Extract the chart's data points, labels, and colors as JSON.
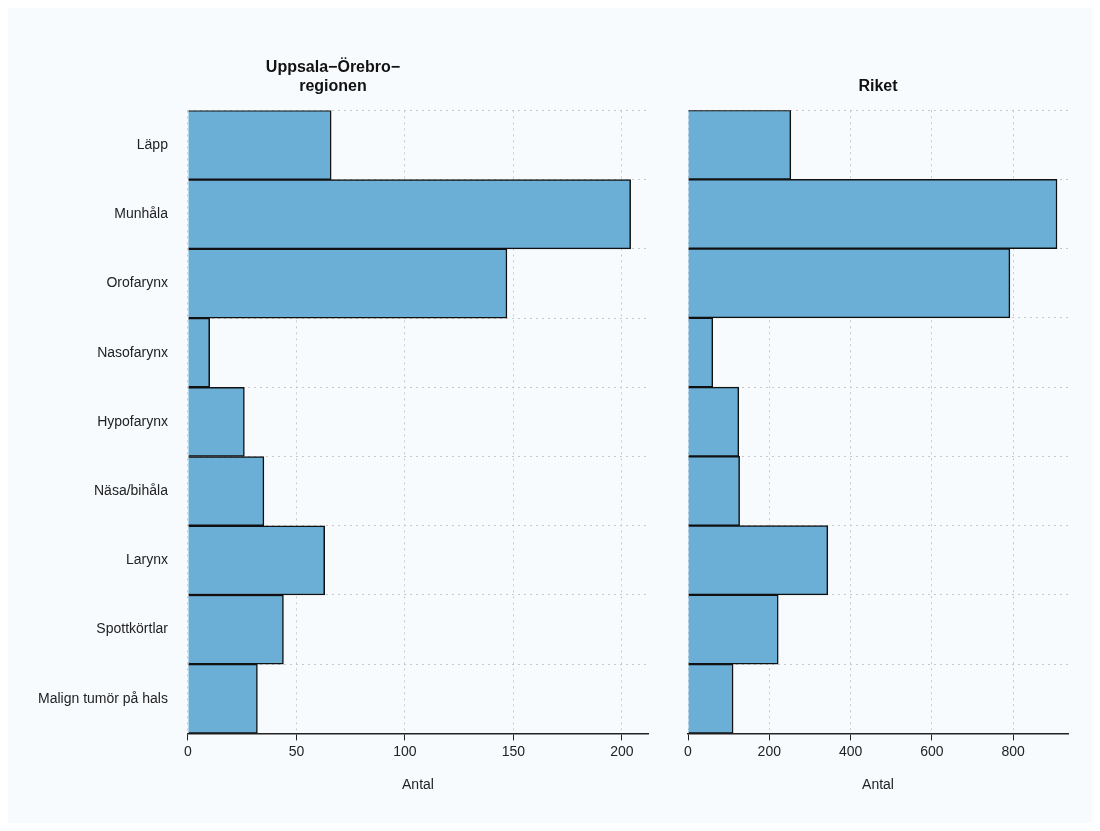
{
  "chart_data": [
    {
      "type": "bar",
      "orientation": "horizontal",
      "title": "Uppsala−Örebro−regionen",
      "xlabel": "Antal",
      "categories": [
        "Läpp",
        "Munhåla",
        "Orofarynx",
        "Nasofarynx",
        "Hypofarynx",
        "Näsa/bihåla",
        "Larynx",
        "Spottkörtlar",
        "Malign tumör på hals"
      ],
      "values": [
        66,
        204,
        147,
        10,
        26,
        35,
        63,
        44,
        32
      ],
      "color": "#6baed6",
      "xlim": [
        0,
        212
      ],
      "xticks": [
        0,
        50,
        100,
        150,
        200
      ],
      "grid": true
    },
    {
      "type": "bar",
      "orientation": "horizontal",
      "title": "Riket",
      "xlabel": "Antal",
      "categories": [
        null,
        null,
        null,
        null,
        null,
        null,
        null,
        null,
        null
      ],
      "values": [
        253,
        908,
        792,
        61,
        125,
        127,
        344,
        222,
        111
      ],
      "color": "#6baed6",
      "xlim": [
        0,
        935
      ],
      "xticks": [
        0,
        200,
        400,
        600,
        800
      ],
      "grid": true,
      "tick_labels": "x"
    }
  ]
}
